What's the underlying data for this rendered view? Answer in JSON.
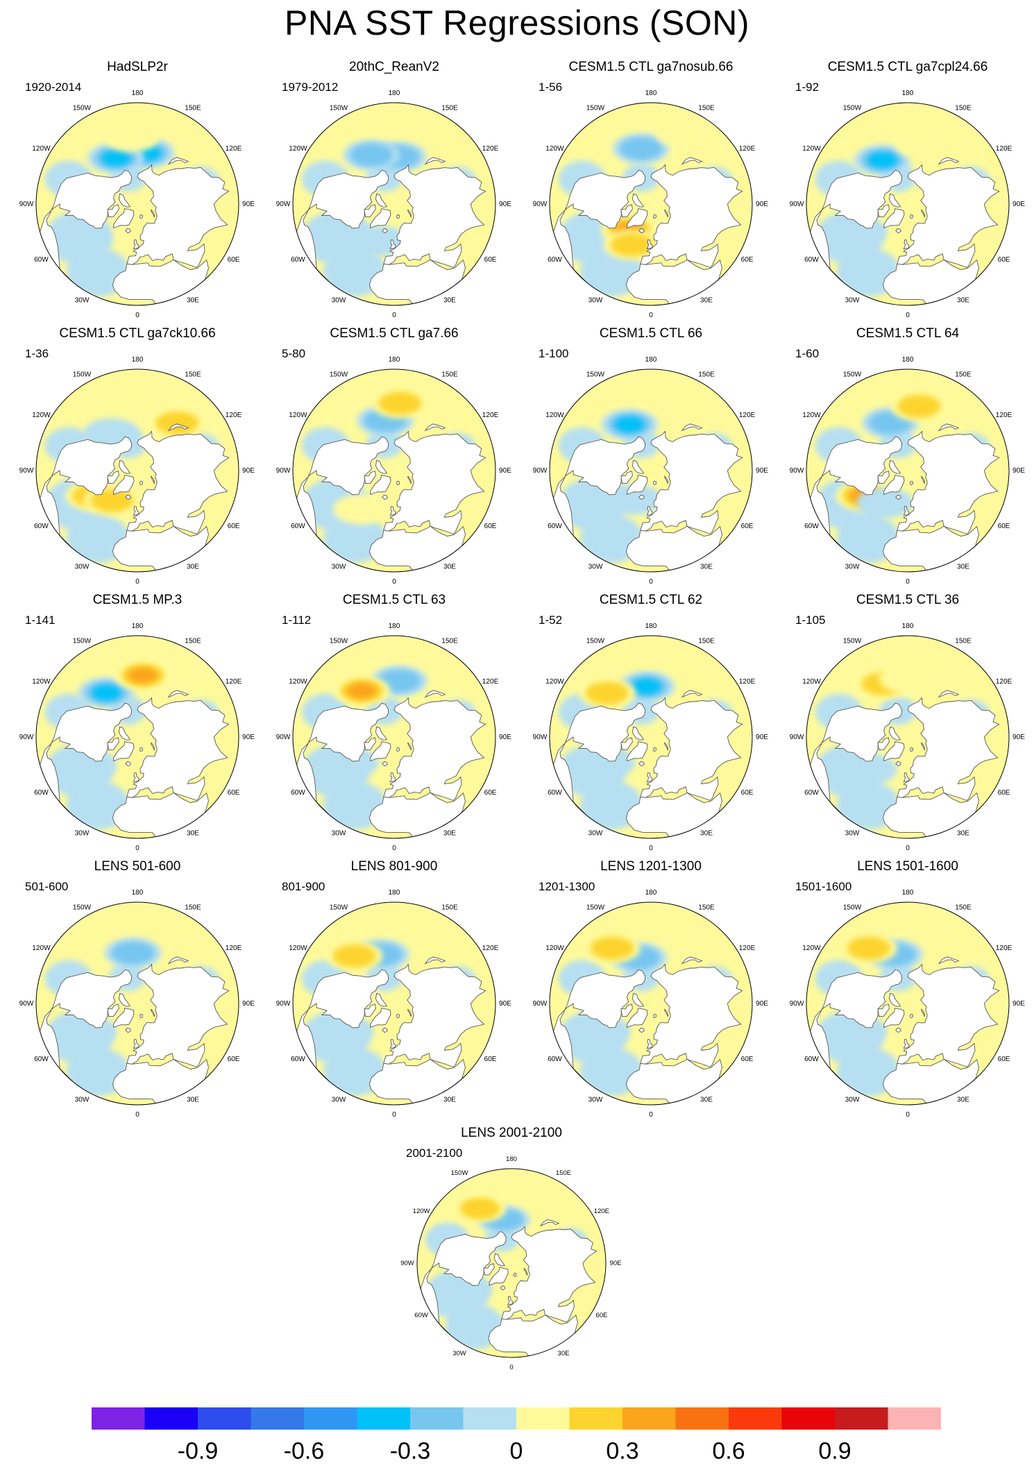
{
  "title": "PNA SST Regressions (SON)",
  "panels": [
    {
      "title": "HadSLP2r",
      "period": "1920-2014",
      "anomalies": [
        {
          "lon": 170,
          "lat": 44,
          "level": -0.45
        },
        {
          "lon": 205,
          "lat": 45,
          "level": -0.45
        },
        {
          "lon": 185,
          "lat": 30,
          "level": 0.15
        },
        {
          "lon": 300,
          "lat": 32,
          "level": -0.15
        }
      ]
    },
    {
      "title": "20thC_ReanV2",
      "period": "1979-2012",
      "anomalies": [
        {
          "lon": 175,
          "lat": 48,
          "level": -0.35
        },
        {
          "lon": 205,
          "lat": 42,
          "level": -0.3
        },
        {
          "lon": 300,
          "lat": 40,
          "level": -0.15
        },
        {
          "lon": 340,
          "lat": 55,
          "level": -0.15
        }
      ]
    },
    {
      "title": "CESM1.5 CTL ga7nosub.66",
      "period": "1-56",
      "anomalies": [
        {
          "lon": 190,
          "lat": 40,
          "level": -0.3
        },
        {
          "lon": 320,
          "lat": 60,
          "level": 0.45
        },
        {
          "lon": 335,
          "lat": 50,
          "level": 0.3
        },
        {
          "lon": 155,
          "lat": 20,
          "level": 0.15
        }
      ]
    },
    {
      "title": "CESM1.5 CTL ga7cpl24.66",
      "period": "1-92",
      "anomalies": [
        {
          "lon": 210,
          "lat": 45,
          "level": -0.45
        },
        {
          "lon": 165,
          "lat": 35,
          "level": 0.25
        },
        {
          "lon": 300,
          "lat": 40,
          "level": -0.15
        }
      ]
    },
    {
      "title": "CESM1.5 CTL ga7ck10.66",
      "period": "1-36",
      "anomalies": [
        {
          "lon": 175,
          "lat": 35,
          "level": 0.2
        },
        {
          "lon": 140,
          "lat": 35,
          "level": 0.3
        },
        {
          "lon": 300,
          "lat": 45,
          "level": 0.3
        },
        {
          "lon": 320,
          "lat": 55,
          "level": 0.4
        },
        {
          "lon": 215,
          "lat": 50,
          "level": -0.15
        }
      ]
    },
    {
      "title": "CESM1.5 CTL ga7.66",
      "period": "5-80",
      "anomalies": [
        {
          "lon": 190,
          "lat": 45,
          "level": -0.3
        },
        {
          "lon": 175,
          "lat": 30,
          "level": 0.3
        },
        {
          "lon": 320,
          "lat": 45,
          "level": 0.25
        }
      ]
    },
    {
      "title": "CESM1.5 CTL 66",
      "period": "1-100",
      "anomalies": [
        {
          "lon": 205,
          "lat": 45,
          "level": -0.45
        },
        {
          "lon": 300,
          "lat": 40,
          "level": -0.15
        },
        {
          "lon": 330,
          "lat": 60,
          "level": -0.25
        }
      ]
    },
    {
      "title": "CESM1.5 CTL 64",
      "period": "1-60",
      "anomalies": [
        {
          "lon": 200,
          "lat": 45,
          "level": -0.3
        },
        {
          "lon": 170,
          "lat": 32,
          "level": 0.35
        },
        {
          "lon": 300,
          "lat": 45,
          "level": 0.45
        },
        {
          "lon": 325,
          "lat": 55,
          "level": -0.15
        }
      ]
    },
    {
      "title": "CESM1.5 MP.3",
      "period": "1-141",
      "anomalies": [
        {
          "lon": 215,
          "lat": 42,
          "level": -0.45
        },
        {
          "lon": 175,
          "lat": 35,
          "level": 0.45
        },
        {
          "lon": 300,
          "lat": 40,
          "level": -0.15
        }
      ]
    },
    {
      "title": "CESM1.5 CTL 63",
      "period": "1-112",
      "anomalies": [
        {
          "lon": 175,
          "lat": 40,
          "level": -0.3
        },
        {
          "lon": 215,
          "lat": 40,
          "level": 0.45
        },
        {
          "lon": 300,
          "lat": 45,
          "level": -0.15
        }
      ]
    },
    {
      "title": "CESM1.5 CTL 62",
      "period": "1-52",
      "anomalies": [
        {
          "lon": 185,
          "lat": 45,
          "level": -0.45
        },
        {
          "lon": 225,
          "lat": 35,
          "level": 0.3
        },
        {
          "lon": 300,
          "lat": 45,
          "level": -0.15
        }
      ]
    },
    {
      "title": "CESM1.5 CTL 36",
      "period": "1-105",
      "anomalies": [
        {
          "lon": 205,
          "lat": 38,
          "level": 0.3
        },
        {
          "lon": 180,
          "lat": 38,
          "level": 0.2
        },
        {
          "lon": 310,
          "lat": 45,
          "level": -0.15
        }
      ]
    },
    {
      "title": "LENS 501-600",
      "period": "501-600",
      "anomalies": [
        {
          "lon": 185,
          "lat": 45,
          "level": -0.3
        },
        {
          "lon": 300,
          "lat": 40,
          "level": -0.15
        }
      ]
    },
    {
      "title": "LENS 801-900",
      "period": "801-900",
      "anomalies": [
        {
          "lon": 195,
          "lat": 45,
          "level": -0.3
        },
        {
          "lon": 220,
          "lat": 35,
          "level": 0.3
        },
        {
          "lon": 300,
          "lat": 40,
          "level": -0.15
        }
      ]
    },
    {
      "title": "LENS 1201-1300",
      "period": "1201-1300",
      "anomalies": [
        {
          "lon": 195,
          "lat": 48,
          "level": -0.3
        },
        {
          "lon": 215,
          "lat": 30,
          "level": 0.3
        },
        {
          "lon": 300,
          "lat": 40,
          "level": -0.15
        }
      ]
    },
    {
      "title": "LENS 1501-1600",
      "period": "1501-1600",
      "anomalies": [
        {
          "lon": 195,
          "lat": 45,
          "level": -0.3
        },
        {
          "lon": 215,
          "lat": 30,
          "level": 0.3
        },
        {
          "lon": 300,
          "lat": 40,
          "level": -0.15
        }
      ]
    },
    {
      "title": "LENS 2001-2100",
      "period": "2001-2100",
      "anomalies": [
        {
          "lon": 190,
          "lat": 48,
          "level": -0.3
        },
        {
          "lon": 210,
          "lat": 30,
          "level": 0.3
        },
        {
          "lon": 300,
          "lat": 40,
          "level": -0.15
        }
      ]
    }
  ],
  "lon_labels": [
    "180",
    "150E",
    "120E",
    "90E",
    "60E",
    "30E",
    "0",
    "30W",
    "60W",
    "90W",
    "120W",
    "150W"
  ],
  "colorbar": {
    "colors": [
      "#7e22e6",
      "#1a00f5",
      "#2d4ded",
      "#3478ea",
      "#2f97f3",
      "#00c0f8",
      "#77c6f0",
      "#b6dff2",
      "#fefa9c",
      "#fdd42e",
      "#fba51d",
      "#f97212",
      "#fb3a0c",
      "#e80308",
      "#c71b1d",
      "#fdb3b3"
    ],
    "labels": [
      "-0.9",
      "-0.6",
      "-0.3",
      "0",
      "0.3",
      "0.6",
      "0.9"
    ]
  }
}
